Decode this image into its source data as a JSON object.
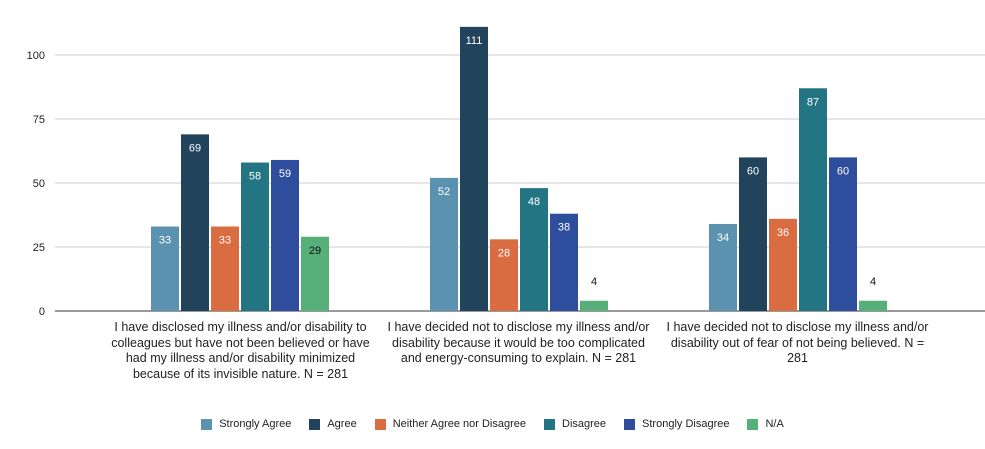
{
  "chart_data": {
    "type": "bar",
    "title": "",
    "xlabel": "",
    "ylabel": "",
    "ylim": [
      0,
      120
    ],
    "yticks": [
      0,
      25,
      50,
      75,
      100
    ],
    "grid": true,
    "legend_position": "bottom",
    "categories": [
      "I have disclosed my illness and/or disability to colleagues but have not been believed or have had my illness and/or disability minimized because of its invisible nature. N = 281",
      "I have decided not to disclose my illness and/or disability because it would be too complicated and energy-consuming to explain. N = 281",
      "I have decided not to disclose my illness and/or disability out of fear of not being believed. N = 281"
    ],
    "series": [
      {
        "name": "Strongly Agree",
        "color": "#5A92B0",
        "values": [
          33,
          52,
          34
        ]
      },
      {
        "name": "Agree",
        "color": "#22435C",
        "values": [
          69,
          111,
          60
        ]
      },
      {
        "name": "Neither Agree nor Disagree",
        "color": "#D96C40",
        "values": [
          33,
          28,
          36
        ]
      },
      {
        "name": "Disagree",
        "color": "#247583",
        "values": [
          58,
          48,
          87
        ]
      },
      {
        "name": "Strongly Disagree",
        "color": "#2E4D9C",
        "values": [
          59,
          38,
          60
        ]
      },
      {
        "name": "N/A",
        "color": "#57AF79",
        "values": [
          29,
          4,
          4
        ]
      }
    ]
  }
}
